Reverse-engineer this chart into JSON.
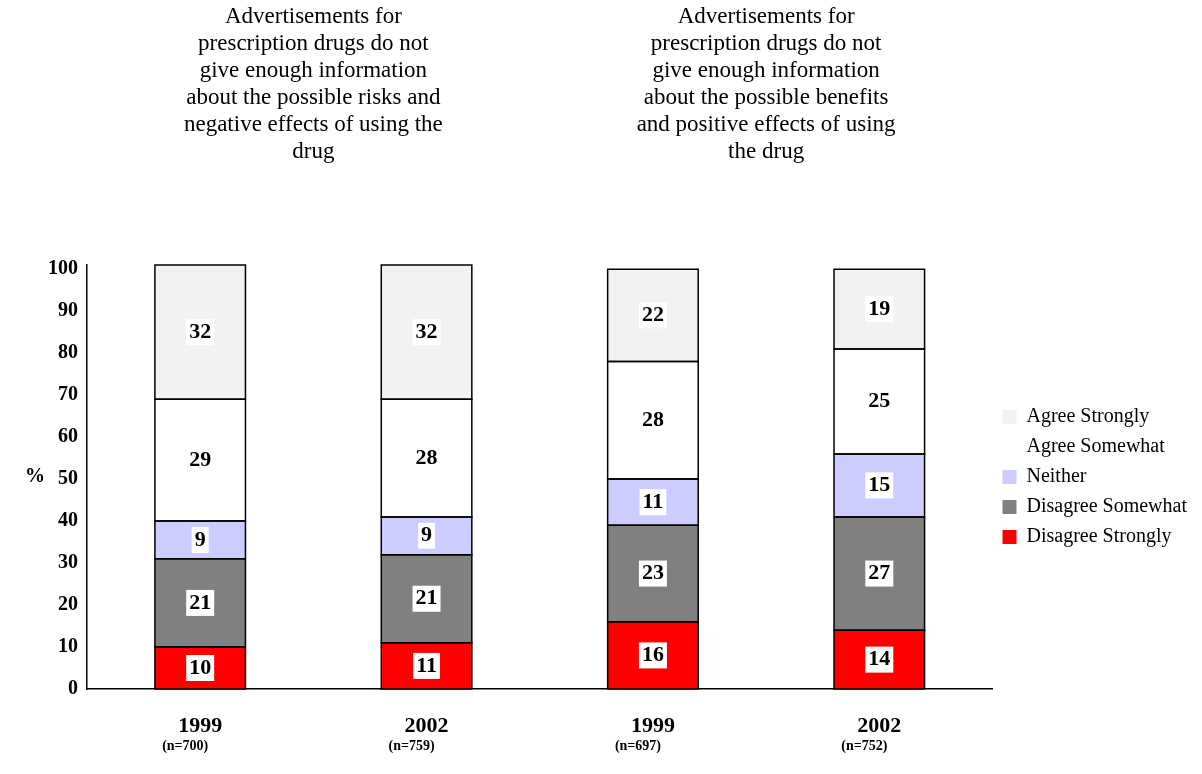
{
  "chart_data": {
    "type": "bar",
    "stacked": true,
    "ylabel": "%",
    "annotations": [
      "Advertisements for prescription drugs do not give enough information about the possible risks and negative effects of using the drug",
      "Advertisements for prescription drugs do not give enough information about the possible benefits and positive effects of using the drug"
    ],
    "categories": [
      "1999\n(n=700)",
      "2002\n(n=759)",
      "1999\n(n=697)",
      "2002\n(n=752)"
    ],
    "series": [
      {
        "name": "Disagree Strongly",
        "color": "#ff0000",
        "values": [
          10,
          11,
          16,
          14
        ]
      },
      {
        "name": "Disagree Somewhat",
        "color": "#808080",
        "values": [
          21,
          21,
          23,
          27
        ]
      },
      {
        "name": "Neither",
        "color": "#ccccff",
        "values": [
          9,
          9,
          11,
          15
        ]
      },
      {
        "name": "Agree Somewhat",
        "color": "#ffffff",
        "values": [
          29,
          28,
          28,
          25
        ]
      },
      {
        "name": "Agree Strongly",
        "color": "#f2f2f2",
        "values": [
          32,
          32,
          22,
          19
        ]
      }
    ],
    "ylim": [
      0,
      101
    ],
    "yticks": [
      0,
      10,
      20,
      30,
      40,
      50,
      60,
      70,
      80,
      90,
      100
    ],
    "data_labels": true,
    "legend": "right",
    "grid": false
  }
}
